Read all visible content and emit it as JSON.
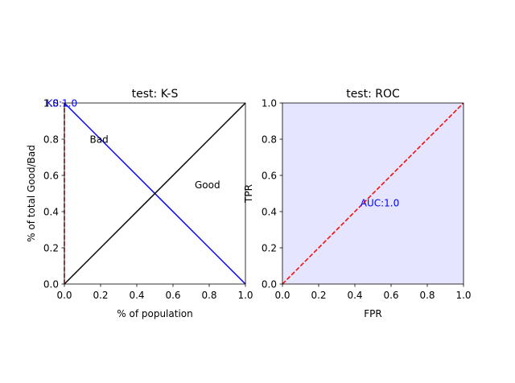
{
  "chart_data": [
    {
      "type": "line",
      "title": "test: K-S",
      "xlabel": "% of population",
      "ylabel": "% of total Good/Bad",
      "xlim": [
        0,
        1
      ],
      "ylim": [
        0,
        1
      ],
      "xticks": [
        "0.0",
        "0.2",
        "0.4",
        "0.6",
        "0.8",
        "1.0"
      ],
      "yticks": [
        "0.0",
        "0.2",
        "0.4",
        "0.6",
        "0.8",
        "1.0"
      ],
      "series": [
        {
          "name": "Bad",
          "color": "#0000ff",
          "style": "solid",
          "x": [
            0,
            1
          ],
          "y": [
            1,
            0
          ]
        },
        {
          "name": "Good",
          "color": "#000000",
          "style": "solid",
          "x": [
            0,
            1
          ],
          "y": [
            0,
            1
          ]
        },
        {
          "color": "#c00000",
          "style": "dashed",
          "x": [
            0,
            0
          ],
          "y": [
            0,
            1
          ]
        }
      ],
      "annotations": [
        {
          "text": "Bad",
          "x": 0.14,
          "y": 0.8,
          "color": "#000000"
        },
        {
          "text": "Good",
          "x": 0.72,
          "y": 0.55,
          "color": "#000000"
        },
        {
          "text": "KS:1.0",
          "x": -0.1,
          "y": 1.0,
          "color": "#0000ff"
        }
      ],
      "background": "#ffffff"
    },
    {
      "type": "line",
      "title": "test: ROC",
      "xlabel": "FPR",
      "ylabel": "TPR",
      "xlim": [
        0,
        1
      ],
      "ylim": [
        0,
        1
      ],
      "xticks": [
        "0.0",
        "0.2",
        "0.4",
        "0.6",
        "0.8",
        "1.0"
      ],
      "yticks": [
        "0.0",
        "0.2",
        "0.4",
        "0.6",
        "0.8",
        "1.0"
      ],
      "series": [
        {
          "color": "#ff0000",
          "style": "dashed",
          "x": [
            0,
            1
          ],
          "y": [
            0,
            1
          ]
        }
      ],
      "annotations": [
        {
          "text": "AUC:1.0",
          "x": 0.43,
          "y": 0.45,
          "color": "#0000ff"
        }
      ],
      "background": "#e5e5ff"
    }
  ]
}
